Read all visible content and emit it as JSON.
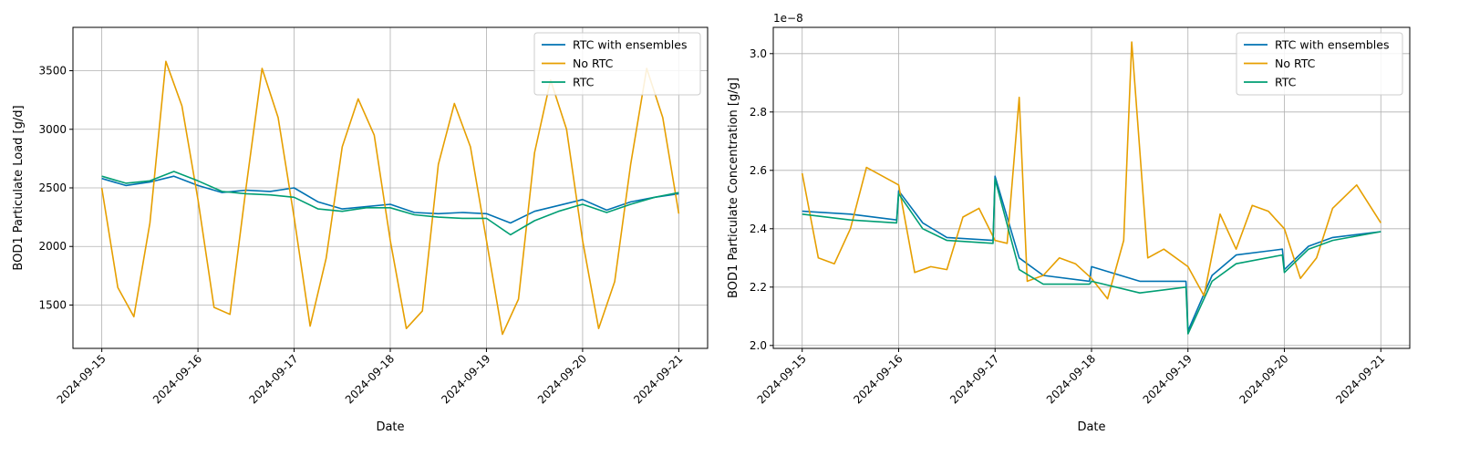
{
  "chart_data": [
    {
      "type": "line",
      "xlabel": "Date",
      "ylabel": "BOD1 Particulate Load [g/d]",
      "scale_label": "",
      "xlim": [
        "2024-09-14 16:48",
        "2024-09-21 07:12"
      ],
      "ylim": [
        1130,
        3870
      ],
      "x_ticks": [
        "2024-09-15",
        "2024-09-16",
        "2024-09-17",
        "2024-09-18",
        "2024-09-19",
        "2024-09-20",
        "2024-09-21"
      ],
      "y_ticks": [
        1500,
        2000,
        2500,
        3000,
        3500
      ],
      "y_tick_labels": [
        "1500",
        "2000",
        "2500",
        "3000",
        "3500"
      ],
      "grid": true,
      "legend_position": "top-right",
      "series": [
        {
          "name": "RTC with ensembles",
          "color": "#0072B2",
          "x": [
            "2024-09-15 00:00",
            "2024-09-15 06:00",
            "2024-09-15 12:00",
            "2024-09-15 18:00",
            "2024-09-16 00:00",
            "2024-09-16 06:00",
            "2024-09-16 12:00",
            "2024-09-16 18:00",
            "2024-09-17 00:00",
            "2024-09-17 06:00",
            "2024-09-17 12:00",
            "2024-09-17 18:00",
            "2024-09-18 00:00",
            "2024-09-18 06:00",
            "2024-09-18 12:00",
            "2024-09-18 18:00",
            "2024-09-19 00:00",
            "2024-09-19 06:00",
            "2024-09-19 12:00",
            "2024-09-19 18:00",
            "2024-09-20 00:00",
            "2024-09-20 06:00",
            "2024-09-20 12:00",
            "2024-09-20 18:00",
            "2024-09-21 00:00"
          ],
          "y": [
            2580,
            2520,
            2550,
            2600,
            2520,
            2460,
            2480,
            2470,
            2500,
            2380,
            2320,
            2340,
            2360,
            2290,
            2280,
            2290,
            2280,
            2200,
            2300,
            2350,
            2400,
            2310,
            2380,
            2420,
            2450
          ]
        },
        {
          "name": "No RTC",
          "color": "#E69F00",
          "x": [
            "2024-09-15 00:00",
            "2024-09-15 04:00",
            "2024-09-15 08:00",
            "2024-09-15 12:00",
            "2024-09-15 16:00",
            "2024-09-15 20:00",
            "2024-09-16 00:00",
            "2024-09-16 04:00",
            "2024-09-16 08:00",
            "2024-09-16 12:00",
            "2024-09-16 16:00",
            "2024-09-16 20:00",
            "2024-09-17 00:00",
            "2024-09-17 04:00",
            "2024-09-17 08:00",
            "2024-09-17 12:00",
            "2024-09-17 16:00",
            "2024-09-17 20:00",
            "2024-09-18 00:00",
            "2024-09-18 04:00",
            "2024-09-18 08:00",
            "2024-09-18 12:00",
            "2024-09-18 16:00",
            "2024-09-18 20:00",
            "2024-09-19 00:00",
            "2024-09-19 04:00",
            "2024-09-19 08:00",
            "2024-09-19 12:00",
            "2024-09-19 16:00",
            "2024-09-19 20:00",
            "2024-09-20 00:00",
            "2024-09-20 04:00",
            "2024-09-20 08:00",
            "2024-09-20 12:00",
            "2024-09-20 16:00",
            "2024-09-20 20:00",
            "2024-09-21 00:00"
          ],
          "y": [
            2500,
            1650,
            1400,
            2200,
            3580,
            3200,
            2400,
            1480,
            1420,
            2500,
            3520,
            3100,
            2250,
            1320,
            1900,
            2850,
            3260,
            2950,
            2050,
            1300,
            1450,
            2700,
            3220,
            2850,
            2050,
            1250,
            1550,
            2800,
            3420,
            3000,
            2050,
            1300,
            1700,
            2700,
            3520,
            3100,
            2280
          ]
        },
        {
          "name": "RTC",
          "color": "#009E73",
          "x": [
            "2024-09-15 00:00",
            "2024-09-15 06:00",
            "2024-09-15 12:00",
            "2024-09-15 18:00",
            "2024-09-16 00:00",
            "2024-09-16 06:00",
            "2024-09-16 12:00",
            "2024-09-16 18:00",
            "2024-09-17 00:00",
            "2024-09-17 06:00",
            "2024-09-17 12:00",
            "2024-09-17 18:00",
            "2024-09-18 00:00",
            "2024-09-18 06:00",
            "2024-09-18 12:00",
            "2024-09-18 18:00",
            "2024-09-19 00:00",
            "2024-09-19 06:00",
            "2024-09-19 12:00",
            "2024-09-19 18:00",
            "2024-09-20 00:00",
            "2024-09-20 06:00",
            "2024-09-20 12:00",
            "2024-09-20 18:00",
            "2024-09-21 00:00"
          ],
          "y": [
            2600,
            2540,
            2560,
            2640,
            2560,
            2470,
            2450,
            2440,
            2420,
            2320,
            2300,
            2330,
            2330,
            2270,
            2250,
            2240,
            2240,
            2100,
            2220,
            2300,
            2360,
            2290,
            2360,
            2420,
            2460
          ]
        }
      ]
    },
    {
      "type": "line",
      "xlabel": "Date",
      "ylabel": "BOD1 Particulate Concentration [g/g]",
      "scale_label": "1e−8",
      "xlim": [
        "2024-09-14 16:48",
        "2024-09-21 07:12"
      ],
      "ylim": [
        1.99,
        3.09
      ],
      "x_ticks": [
        "2024-09-15",
        "2024-09-16",
        "2024-09-17",
        "2024-09-18",
        "2024-09-19",
        "2024-09-20",
        "2024-09-21"
      ],
      "y_ticks": [
        2.0,
        2.2,
        2.4,
        2.6,
        2.8,
        3.0
      ],
      "y_tick_labels": [
        "2.0",
        "2.2",
        "2.4",
        "2.6",
        "2.8",
        "3.0"
      ],
      "grid": true,
      "legend_position": "top-right",
      "series": [
        {
          "name": "RTC with ensembles",
          "color": "#0072B2",
          "x": [
            "2024-09-15 00:00",
            "2024-09-15 12:00",
            "2024-09-15 23:30",
            "2024-09-16 00:00",
            "2024-09-16 06:00",
            "2024-09-16 12:00",
            "2024-09-16 23:30",
            "2024-09-17 00:00",
            "2024-09-17 06:00",
            "2024-09-17 12:00",
            "2024-09-17 23:30",
            "2024-09-18 00:00",
            "2024-09-18 12:00",
            "2024-09-18 23:30",
            "2024-09-19 00:00",
            "2024-09-19 06:00",
            "2024-09-19 12:00",
            "2024-09-19 23:30",
            "2024-09-20 00:00",
            "2024-09-20 06:00",
            "2024-09-20 12:00",
            "2024-09-21 00:00"
          ],
          "y": [
            2.46,
            2.45,
            2.43,
            2.53,
            2.42,
            2.37,
            2.36,
            2.58,
            2.3,
            2.24,
            2.22,
            2.27,
            2.22,
            2.22,
            2.05,
            2.24,
            2.31,
            2.33,
            2.26,
            2.34,
            2.37,
            2.39
          ]
        },
        {
          "name": "No RTC",
          "color": "#E69F00",
          "x": [
            "2024-09-15 00:00",
            "2024-09-15 04:00",
            "2024-09-15 08:00",
            "2024-09-15 12:00",
            "2024-09-15 16:00",
            "2024-09-15 20:00",
            "2024-09-16 00:00",
            "2024-09-16 04:00",
            "2024-09-16 08:00",
            "2024-09-16 12:00",
            "2024-09-16 16:00",
            "2024-09-16 20:00",
            "2024-09-17 00:00",
            "2024-09-17 03:00",
            "2024-09-17 06:00",
            "2024-09-17 08:00",
            "2024-09-17 12:00",
            "2024-09-17 16:00",
            "2024-09-17 20:00",
            "2024-09-18 00:00",
            "2024-09-18 04:00",
            "2024-09-18 08:00",
            "2024-09-18 10:00",
            "2024-09-18 14:00",
            "2024-09-18 18:00",
            "2024-09-19 00:00",
            "2024-09-19 04:00",
            "2024-09-19 08:00",
            "2024-09-19 12:00",
            "2024-09-19 16:00",
            "2024-09-19 20:00",
            "2024-09-20 00:00",
            "2024-09-20 04:00",
            "2024-09-20 08:00",
            "2024-09-20 12:00",
            "2024-09-20 18:00",
            "2024-09-21 00:00"
          ],
          "y": [
            2.59,
            2.3,
            2.28,
            2.4,
            2.61,
            2.58,
            2.55,
            2.25,
            2.27,
            2.26,
            2.44,
            2.47,
            2.36,
            2.35,
            2.85,
            2.22,
            2.24,
            2.3,
            2.28,
            2.23,
            2.16,
            2.36,
            3.04,
            2.3,
            2.33,
            2.27,
            2.17,
            2.45,
            2.33,
            2.48,
            2.46,
            2.4,
            2.23,
            2.3,
            2.47,
            2.55,
            2.42
          ]
        },
        {
          "name": "RTC",
          "color": "#009E73",
          "x": [
            "2024-09-15 00:00",
            "2024-09-15 12:00",
            "2024-09-15 23:30",
            "2024-09-16 00:00",
            "2024-09-16 06:00",
            "2024-09-16 12:00",
            "2024-09-16 23:30",
            "2024-09-17 00:00",
            "2024-09-17 06:00",
            "2024-09-17 12:00",
            "2024-09-17 23:30",
            "2024-09-18 00:00",
            "2024-09-18 12:00",
            "2024-09-18 23:30",
            "2024-09-19 00:00",
            "2024-09-19 06:00",
            "2024-09-19 12:00",
            "2024-09-19 23:30",
            "2024-09-20 00:00",
            "2024-09-20 06:00",
            "2024-09-20 12:00",
            "2024-09-21 00:00"
          ],
          "y": [
            2.45,
            2.43,
            2.42,
            2.52,
            2.4,
            2.36,
            2.35,
            2.57,
            2.26,
            2.21,
            2.21,
            2.22,
            2.18,
            2.2,
            2.04,
            2.22,
            2.28,
            2.31,
            2.25,
            2.33,
            2.36,
            2.39
          ]
        }
      ]
    }
  ]
}
